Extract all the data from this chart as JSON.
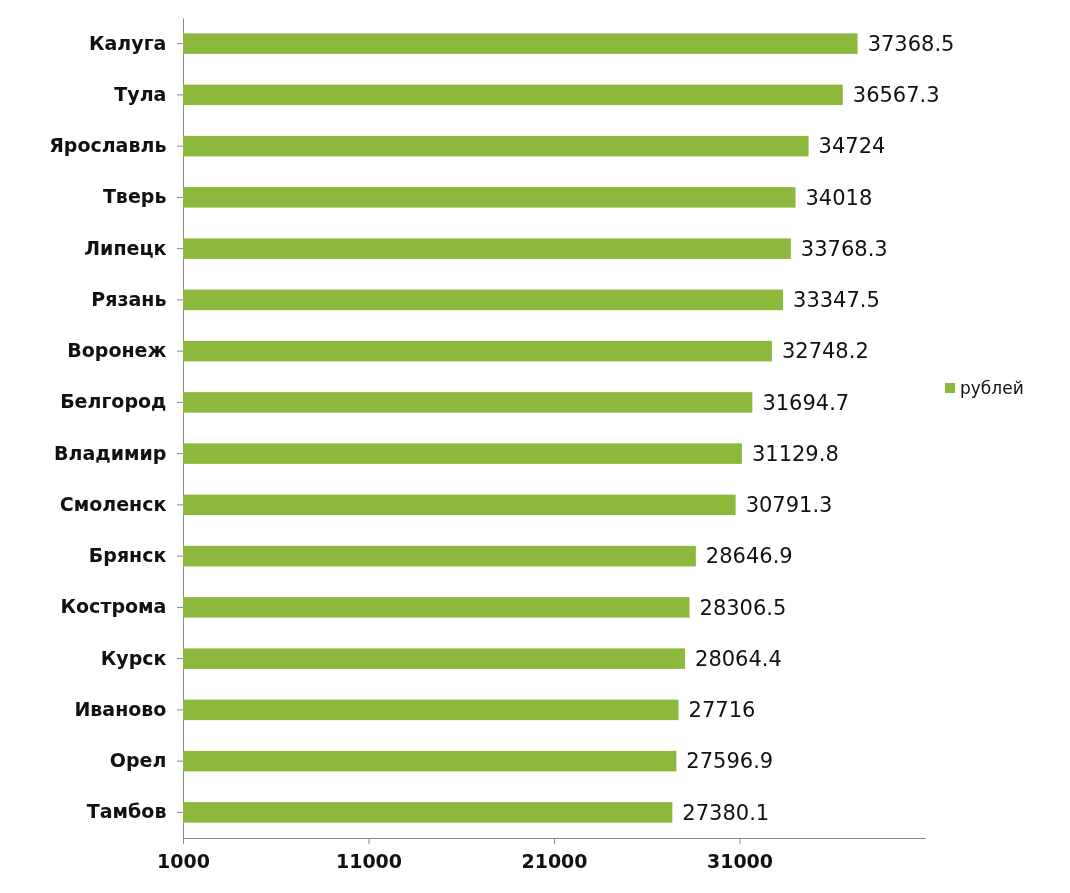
{
  "chart_data": {
    "type": "bar",
    "orientation": "horizontal",
    "categories": [
      "Калуга",
      "Тула",
      "Ярославль",
      "Тверь",
      "Липецк",
      "Рязань",
      "Воронеж",
      "Белгород",
      "Владимир",
      "Смоленск",
      "Брянск",
      "Кострома",
      "Курск",
      "Иваново",
      "Орел",
      "Тамбов"
    ],
    "series": [
      {
        "name": "рублей",
        "color": "#8cb83c",
        "values": [
          37368.5,
          36567.3,
          34724,
          34018,
          33768.3,
          33347.5,
          32748.2,
          31694.7,
          31129.8,
          30791.3,
          28646.9,
          28306.5,
          28064.4,
          27716,
          27596.9,
          27380.1
        ]
      }
    ],
    "xlim": [
      1000,
      41000
    ],
    "xticks": [
      1000,
      11000,
      21000,
      31000
    ],
    "data_labels": true,
    "legend": "right",
    "grid": false
  }
}
